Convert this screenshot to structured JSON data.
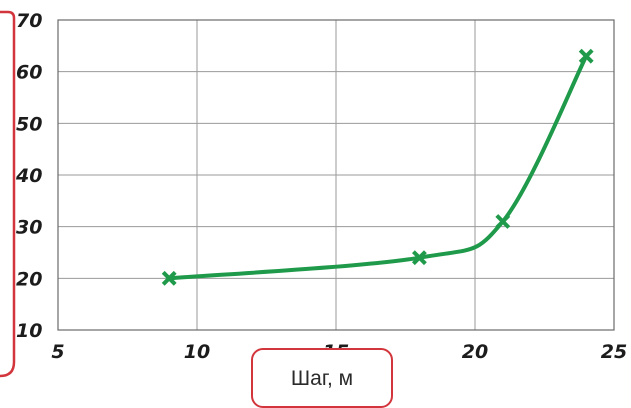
{
  "chart_data": {
    "type": "line",
    "xlabel": "Шаг, м",
    "ylabel": "",
    "xlim": [
      5,
      25
    ],
    "ylim": [
      10,
      70
    ],
    "x_ticks": [
      "5",
      "10",
      "15",
      "20",
      "25"
    ],
    "y_ticks": [
      "10",
      "20",
      "30",
      "40",
      "50",
      "60",
      "70"
    ],
    "grid": true,
    "series": [
      {
        "x": [
          9,
          18,
          21,
          24
        ],
        "y": [
          20,
          24,
          31,
          63
        ],
        "color": "#1e9a4a",
        "marker": "x",
        "smooth": true
      }
    ]
  },
  "colors": {
    "axis_frame": "#d2353b",
    "grid": "#9a9a9a",
    "line": "#1e9a4a"
  }
}
